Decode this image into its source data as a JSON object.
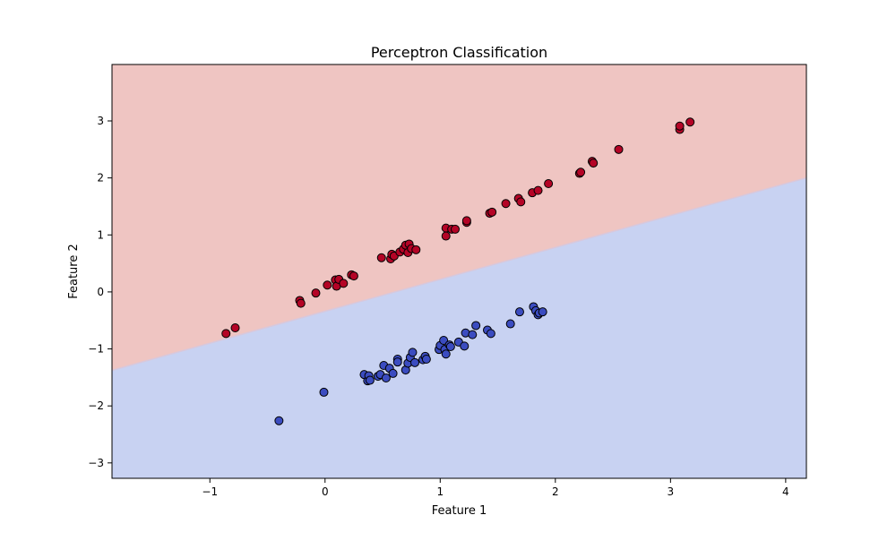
{
  "chart_data": {
    "type": "scatter",
    "title": "Perceptron Classification",
    "xlabel": "Feature 1",
    "ylabel": "Feature 2",
    "xlim": [
      -1.85,
      4.18
    ],
    "ylim": [
      -3.27,
      3.99
    ],
    "xticks": [
      -1,
      0,
      1,
      2,
      3,
      4
    ],
    "yticks": [
      -3,
      -2,
      -1,
      0,
      1,
      2,
      3
    ],
    "grid": false,
    "decision_boundary": {
      "slope": 0.56,
      "intercept": -0.34
    },
    "colors": {
      "upper_region": "#efc5c2",
      "lower_region": "#c8d2f2",
      "boundary": "#d8c8dc",
      "series_upper_points": "#b40426",
      "series_lower_points": "#3b4cc0",
      "point_edge": "#000000"
    },
    "series": [
      {
        "class": "upper",
        "x": [
          -0.86,
          -0.78,
          -0.22,
          -0.21,
          -0.08,
          0.02,
          0.09,
          0.1,
          0.12,
          0.16,
          0.23,
          0.25,
          0.49,
          0.57,
          0.58,
          0.6,
          0.65,
          0.68,
          0.7,
          0.72,
          0.73,
          0.75,
          0.79,
          1.05,
          1.05,
          1.1,
          1.13,
          1.23,
          1.23,
          1.43,
          1.45,
          1.57,
          1.68,
          1.7,
          1.8,
          1.85,
          1.94,
          2.21,
          2.22,
          2.32,
          2.33,
          2.55,
          3.08,
          3.08,
          3.17
        ],
        "y": [
          -0.73,
          -0.63,
          -0.15,
          -0.2,
          -0.02,
          0.12,
          0.21,
          0.1,
          0.22,
          0.15,
          0.3,
          0.28,
          0.6,
          0.58,
          0.66,
          0.63,
          0.7,
          0.75,
          0.82,
          0.69,
          0.84,
          0.76,
          0.74,
          1.12,
          0.98,
          1.1,
          1.1,
          1.22,
          1.25,
          1.38,
          1.4,
          1.55,
          1.64,
          1.58,
          1.74,
          1.78,
          1.9,
          2.08,
          2.1,
          2.29,
          2.26,
          2.5,
          2.85,
          2.91,
          2.98
        ]
      },
      {
        "class": "lower",
        "x": [
          -0.4,
          -0.01,
          0.34,
          0.37,
          0.38,
          0.39,
          0.46,
          0.48,
          0.51,
          0.53,
          0.56,
          0.59,
          0.63,
          0.63,
          0.7,
          0.72,
          0.74,
          0.76,
          0.78,
          0.85,
          0.87,
          0.88,
          0.99,
          1.0,
          1.03,
          1.04,
          1.05,
          1.08,
          1.09,
          1.16,
          1.21,
          1.22,
          1.28,
          1.31,
          1.41,
          1.44,
          1.61,
          1.69,
          1.81,
          1.83,
          1.85,
          1.86,
          1.89
        ],
        "y": [
          -2.26,
          -1.76,
          -1.45,
          -1.56,
          -1.47,
          -1.55,
          -1.48,
          -1.45,
          -1.29,
          -1.51,
          -1.34,
          -1.43,
          -1.18,
          -1.23,
          -1.37,
          -1.25,
          -1.15,
          -1.06,
          -1.24,
          -1.19,
          -1.13,
          -1.18,
          -1.01,
          -0.94,
          -0.85,
          -1.01,
          -1.09,
          -0.93,
          -0.96,
          -0.88,
          -0.95,
          -0.72,
          -0.75,
          -0.59,
          -0.67,
          -0.73,
          -0.56,
          -0.35,
          -0.26,
          -0.33,
          -0.4,
          -0.37,
          -0.35
        ]
      }
    ]
  }
}
